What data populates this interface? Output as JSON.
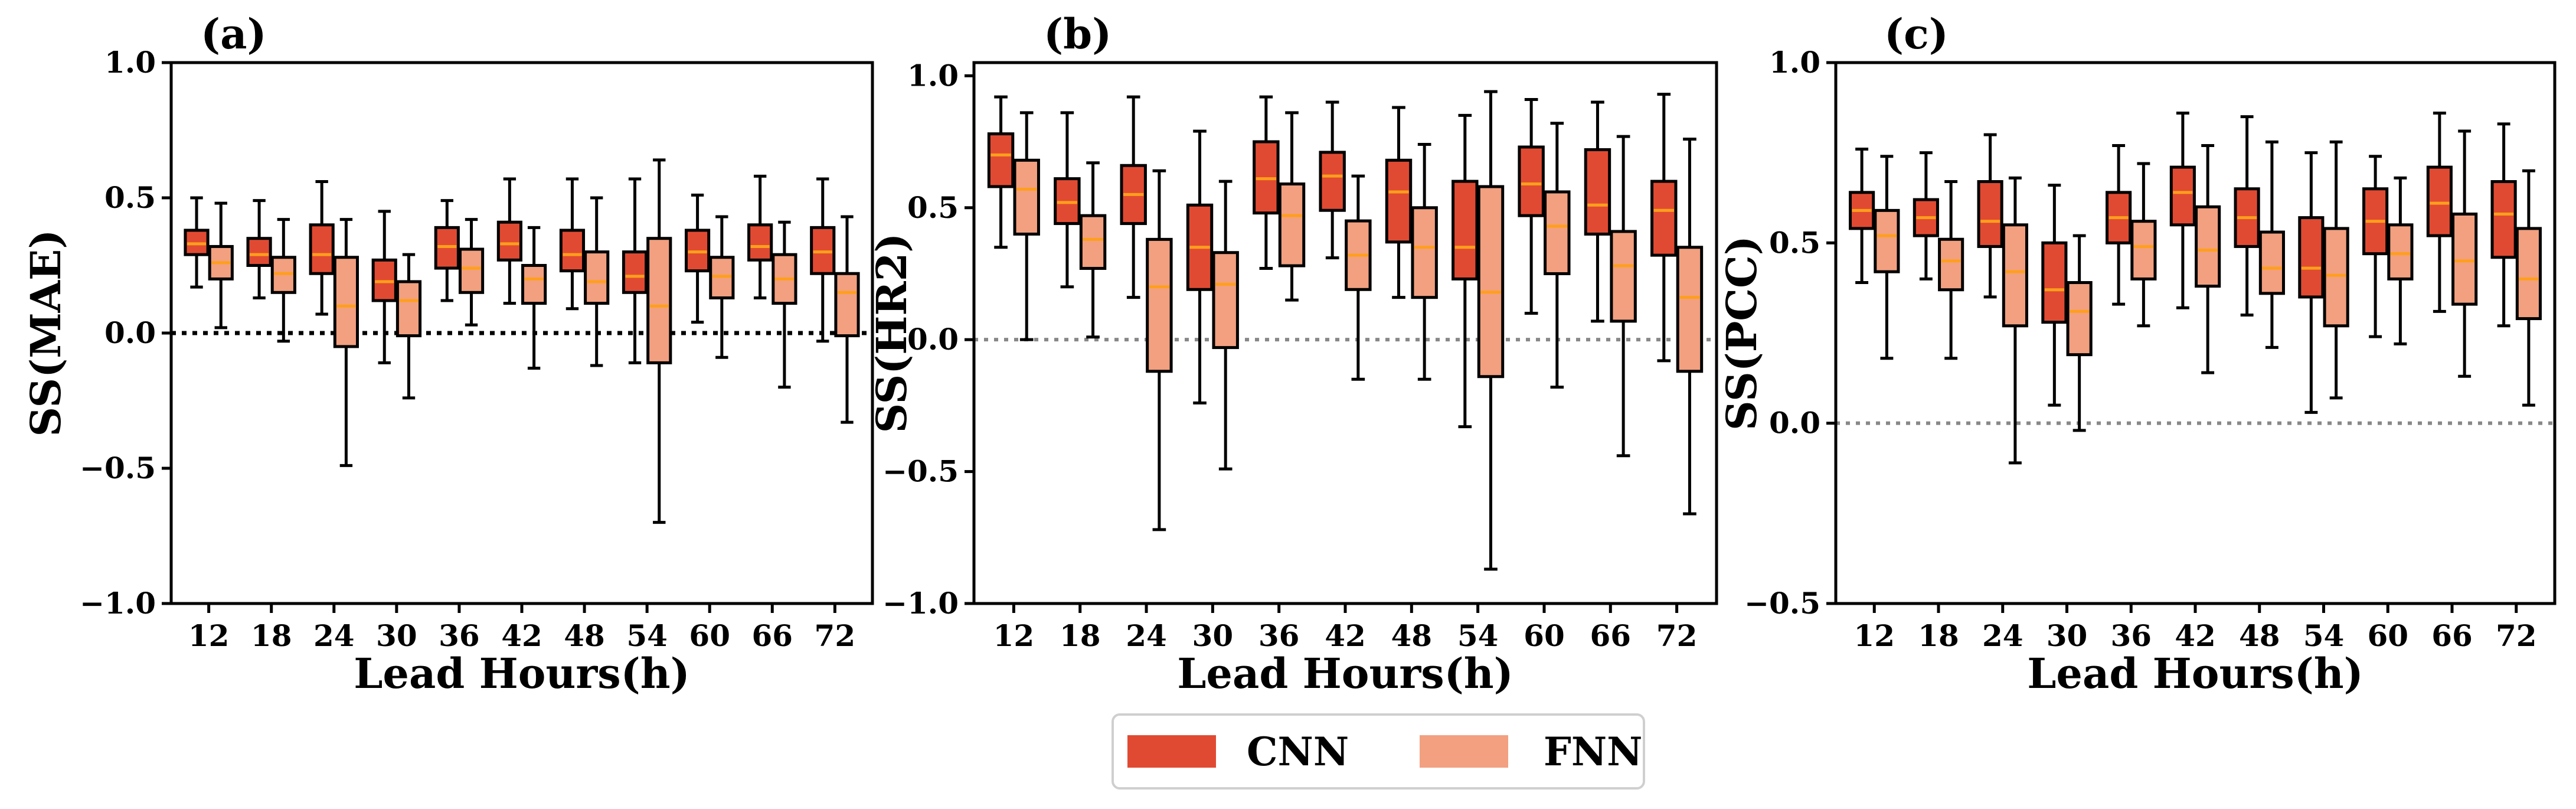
{
  "colors": {
    "cnn": "#e14a32",
    "fnn": "#f2a080",
    "median": "#ff9f1c",
    "axis": "#000000",
    "zero_line": "#888888"
  },
  "legend": {
    "items": [
      {
        "label": "CNN",
        "color_key": "cnn"
      },
      {
        "label": "FNN",
        "color_key": "fnn"
      }
    ]
  },
  "chart_data": [
    {
      "type": "box",
      "panel_label": "(a)",
      "ylabel": "SS(MAE)",
      "xlabel": "Lead Hours(h)",
      "ylim": [
        -1.0,
        1.0
      ],
      "yticks": [
        -1.0,
        -0.5,
        0.0,
        0.5,
        1.0
      ],
      "ytick_labels": [
        "−1.0",
        "−0.5",
        "0.0",
        "0.5",
        "1.0"
      ],
      "zero_line": "black-dotted",
      "categories": [
        "12",
        "18",
        "24",
        "30",
        "36",
        "42",
        "48",
        "54",
        "60",
        "66",
        "72"
      ],
      "series": [
        {
          "name": "CNN",
          "boxes": [
            {
              "whislo": 0.17,
              "q1": 0.29,
              "med": 0.33,
              "q3": 0.38,
              "whishi": 0.5
            },
            {
              "whislo": 0.13,
              "q1": 0.25,
              "med": 0.29,
              "q3": 0.35,
              "whishi": 0.49
            },
            {
              "whislo": 0.07,
              "q1": 0.22,
              "med": 0.29,
              "q3": 0.4,
              "whishi": 0.56
            },
            {
              "whislo": -0.11,
              "q1": 0.12,
              "med": 0.19,
              "q3": 0.27,
              "whishi": 0.45
            },
            {
              "whislo": 0.12,
              "q1": 0.24,
              "med": 0.32,
              "q3": 0.39,
              "whishi": 0.49
            },
            {
              "whislo": 0.11,
              "q1": 0.27,
              "med": 0.33,
              "q3": 0.41,
              "whishi": 0.57
            },
            {
              "whislo": 0.09,
              "q1": 0.23,
              "med": 0.29,
              "q3": 0.38,
              "whishi": 0.57
            },
            {
              "whislo": -0.11,
              "q1": 0.15,
              "med": 0.21,
              "q3": 0.3,
              "whishi": 0.57
            },
            {
              "whislo": 0.04,
              "q1": 0.23,
              "med": 0.3,
              "q3": 0.38,
              "whishi": 0.51
            },
            {
              "whislo": 0.13,
              "q1": 0.27,
              "med": 0.32,
              "q3": 0.4,
              "whishi": 0.58
            },
            {
              "whislo": -0.03,
              "q1": 0.22,
              "med": 0.3,
              "q3": 0.39,
              "whishi": 0.57
            }
          ]
        },
        {
          "name": "FNN",
          "boxes": [
            {
              "whislo": 0.02,
              "q1": 0.2,
              "med": 0.26,
              "q3": 0.32,
              "whishi": 0.48
            },
            {
              "whislo": -0.03,
              "q1": 0.15,
              "med": 0.22,
              "q3": 0.28,
              "whishi": 0.42
            },
            {
              "whislo": -0.49,
              "q1": -0.05,
              "med": 0.1,
              "q3": 0.28,
              "whishi": 0.42
            },
            {
              "whislo": -0.24,
              "q1": -0.01,
              "med": 0.12,
              "q3": 0.19,
              "whishi": 0.29
            },
            {
              "whislo": 0.03,
              "q1": 0.15,
              "med": 0.24,
              "q3": 0.31,
              "whishi": 0.42
            },
            {
              "whislo": -0.13,
              "q1": 0.11,
              "med": 0.2,
              "q3": 0.25,
              "whishi": 0.39
            },
            {
              "whislo": -0.12,
              "q1": 0.11,
              "med": 0.19,
              "q3": 0.3,
              "whishi": 0.5
            },
            {
              "whislo": -0.7,
              "q1": -0.11,
              "med": 0.1,
              "q3": 0.35,
              "whishi": 0.64
            },
            {
              "whislo": -0.09,
              "q1": 0.13,
              "med": 0.21,
              "q3": 0.28,
              "whishi": 0.43
            },
            {
              "whislo": -0.2,
              "q1": 0.11,
              "med": 0.2,
              "q3": 0.29,
              "whishi": 0.41
            },
            {
              "whislo": -0.33,
              "q1": -0.01,
              "med": 0.15,
              "q3": 0.22,
              "whishi": 0.43
            }
          ]
        }
      ]
    },
    {
      "type": "box",
      "panel_label": "(b)",
      "ylabel": "SS(HR2)",
      "xlabel": "Lead Hours(h)",
      "ylim": [
        -1.0,
        1.05
      ],
      "yticks": [
        -1.0,
        -0.5,
        0.0,
        0.5,
        1.0
      ],
      "ytick_labels": [
        "−1.0",
        "−0.5",
        "0.0",
        "0.5",
        "1.0"
      ],
      "zero_line": "gray-dotted",
      "categories": [
        "12",
        "18",
        "24",
        "30",
        "36",
        "42",
        "48",
        "54",
        "60",
        "66",
        "72"
      ],
      "series": [
        {
          "name": "CNN",
          "boxes": [
            {
              "whislo": 0.35,
              "q1": 0.58,
              "med": 0.7,
              "q3": 0.78,
              "whishi": 0.92
            },
            {
              "whislo": 0.2,
              "q1": 0.44,
              "med": 0.52,
              "q3": 0.61,
              "whishi": 0.86
            },
            {
              "whislo": 0.16,
              "q1": 0.44,
              "med": 0.55,
              "q3": 0.66,
              "whishi": 0.92
            },
            {
              "whislo": -0.24,
              "q1": 0.19,
              "med": 0.35,
              "q3": 0.51,
              "whishi": 0.79
            },
            {
              "whislo": 0.27,
              "q1": 0.48,
              "med": 0.61,
              "q3": 0.75,
              "whishi": 0.92
            },
            {
              "whislo": 0.31,
              "q1": 0.49,
              "med": 0.62,
              "q3": 0.71,
              "whishi": 0.9
            },
            {
              "whislo": 0.16,
              "q1": 0.37,
              "med": 0.56,
              "q3": 0.68,
              "whishi": 0.88
            },
            {
              "whislo": -0.33,
              "q1": 0.23,
              "med": 0.35,
              "q3": 0.6,
              "whishi": 0.85
            },
            {
              "whislo": 0.1,
              "q1": 0.47,
              "med": 0.59,
              "q3": 0.73,
              "whishi": 0.91
            },
            {
              "whislo": 0.07,
              "q1": 0.4,
              "med": 0.51,
              "q3": 0.72,
              "whishi": 0.9
            },
            {
              "whislo": -0.08,
              "q1": 0.32,
              "med": 0.49,
              "q3": 0.6,
              "whishi": 0.93
            }
          ]
        },
        {
          "name": "FNN",
          "boxes": [
            {
              "whislo": 0.0,
              "q1": 0.4,
              "med": 0.57,
              "q3": 0.68,
              "whishi": 0.86
            },
            {
              "whislo": 0.01,
              "q1": 0.27,
              "med": 0.38,
              "q3": 0.47,
              "whishi": 0.67
            },
            {
              "whislo": -0.72,
              "q1": -0.12,
              "med": 0.2,
              "q3": 0.38,
              "whishi": 0.64
            },
            {
              "whislo": -0.49,
              "q1": -0.03,
              "med": 0.21,
              "q3": 0.33,
              "whishi": 0.6
            },
            {
              "whislo": 0.15,
              "q1": 0.28,
              "med": 0.47,
              "q3": 0.59,
              "whishi": 0.86
            },
            {
              "whislo": -0.15,
              "q1": 0.19,
              "med": 0.32,
              "q3": 0.45,
              "whishi": 0.62
            },
            {
              "whislo": -0.15,
              "q1": 0.16,
              "med": 0.35,
              "q3": 0.5,
              "whishi": 0.74
            },
            {
              "whislo": -0.87,
              "q1": -0.14,
              "med": 0.18,
              "q3": 0.58,
              "whishi": 0.94
            },
            {
              "whislo": -0.18,
              "q1": 0.25,
              "med": 0.43,
              "q3": 0.56,
              "whishi": 0.82
            },
            {
              "whislo": -0.44,
              "q1": 0.07,
              "med": 0.28,
              "q3": 0.41,
              "whishi": 0.77
            },
            {
              "whislo": -0.66,
              "q1": -0.12,
              "med": 0.16,
              "q3": 0.35,
              "whishi": 0.76
            }
          ]
        }
      ]
    },
    {
      "type": "box",
      "panel_label": "(c)",
      "ylabel": "SS(PCC)",
      "xlabel": "Lead Hours(h)",
      "ylim": [
        -0.5,
        1.0
      ],
      "yticks": [
        -0.5,
        0.0,
        0.5,
        1.0
      ],
      "ytick_labels": [
        "−0.5",
        "0.0",
        "0.5",
        "1.0"
      ],
      "zero_line": "gray-dotted",
      "categories": [
        "12",
        "18",
        "24",
        "30",
        "36",
        "42",
        "48",
        "54",
        "60",
        "66",
        "72"
      ],
      "series": [
        {
          "name": "CNN",
          "boxes": [
            {
              "whislo": 0.39,
              "q1": 0.54,
              "med": 0.59,
              "q3": 0.64,
              "whishi": 0.76
            },
            {
              "whislo": 0.4,
              "q1": 0.52,
              "med": 0.57,
              "q3": 0.62,
              "whishi": 0.75
            },
            {
              "whislo": 0.35,
              "q1": 0.49,
              "med": 0.56,
              "q3": 0.67,
              "whishi": 0.8
            },
            {
              "whislo": 0.05,
              "q1": 0.28,
              "med": 0.37,
              "q3": 0.5,
              "whishi": 0.66
            },
            {
              "whislo": 0.33,
              "q1": 0.5,
              "med": 0.57,
              "q3": 0.64,
              "whishi": 0.77
            },
            {
              "whislo": 0.32,
              "q1": 0.55,
              "med": 0.64,
              "q3": 0.71,
              "whishi": 0.86
            },
            {
              "whislo": 0.3,
              "q1": 0.49,
              "med": 0.57,
              "q3": 0.65,
              "whishi": 0.85
            },
            {
              "whislo": 0.03,
              "q1": 0.35,
              "med": 0.43,
              "q3": 0.57,
              "whishi": 0.75
            },
            {
              "whislo": 0.24,
              "q1": 0.47,
              "med": 0.56,
              "q3": 0.65,
              "whishi": 0.74
            },
            {
              "whislo": 0.31,
              "q1": 0.52,
              "med": 0.61,
              "q3": 0.71,
              "whishi": 0.86
            },
            {
              "whislo": 0.27,
              "q1": 0.46,
              "med": 0.58,
              "q3": 0.67,
              "whishi": 0.83
            }
          ]
        },
        {
          "name": "FNN",
          "boxes": [
            {
              "whislo": 0.18,
              "q1": 0.42,
              "med": 0.52,
              "q3": 0.59,
              "whishi": 0.74
            },
            {
              "whislo": 0.18,
              "q1": 0.37,
              "med": 0.45,
              "q3": 0.51,
              "whishi": 0.67
            },
            {
              "whislo": -0.11,
              "q1": 0.27,
              "med": 0.42,
              "q3": 0.55,
              "whishi": 0.68
            },
            {
              "whislo": -0.02,
              "q1": 0.19,
              "med": 0.31,
              "q3": 0.39,
              "whishi": 0.52
            },
            {
              "whislo": 0.27,
              "q1": 0.4,
              "med": 0.49,
              "q3": 0.56,
              "whishi": 0.72
            },
            {
              "whislo": 0.14,
              "q1": 0.38,
              "med": 0.48,
              "q3": 0.6,
              "whishi": 0.77
            },
            {
              "whislo": 0.21,
              "q1": 0.36,
              "med": 0.43,
              "q3": 0.53,
              "whishi": 0.78
            },
            {
              "whislo": 0.07,
              "q1": 0.27,
              "med": 0.41,
              "q3": 0.54,
              "whishi": 0.78
            },
            {
              "whislo": 0.22,
              "q1": 0.4,
              "med": 0.47,
              "q3": 0.55,
              "whishi": 0.68
            },
            {
              "whislo": 0.13,
              "q1": 0.33,
              "med": 0.45,
              "q3": 0.58,
              "whishi": 0.81
            },
            {
              "whislo": 0.05,
              "q1": 0.29,
              "med": 0.4,
              "q3": 0.54,
              "whishi": 0.7
            }
          ]
        }
      ]
    }
  ]
}
